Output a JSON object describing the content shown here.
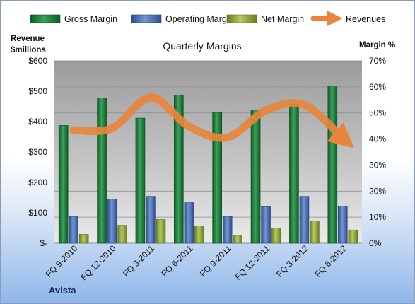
{
  "chart_data": {
    "type": "bar",
    "title": "Quarterly Margins",
    "left_axis_label_line1": "Revenue",
    "left_axis_label_line2": "$millions",
    "right_axis_label": "Margin %",
    "company": "Avista",
    "categories": [
      "FQ 9-2010",
      "FQ 12-2010",
      "FQ 3-2011",
      "FQ 6-2011",
      "FQ 9-2011",
      "FQ 12-2011",
      "FQ 3-2012",
      "FQ 6-2012"
    ],
    "left_ticks": [
      "$-",
      "$100",
      "$200",
      "$300",
      "$400",
      "$500",
      "$600"
    ],
    "right_ticks": [
      "0%",
      "10%",
      "20%",
      "30%",
      "40%",
      "50%",
      "60%",
      "70%"
    ],
    "ylim_left": [
      0,
      600
    ],
    "ylim_right": [
      0,
      70
    ],
    "grid": true,
    "legend_position": "top",
    "series": [
      {
        "name": "Gross Margin",
        "axis": "right",
        "color": "#1e7a3c",
        "values": [
          45.2,
          55.8,
          48.0,
          56.9,
          50.2,
          51.2,
          53.3,
          60.3
        ]
      },
      {
        "name": "Operating Margin",
        "axis": "right",
        "color": "#4a6fb5",
        "values": [
          10.3,
          17.0,
          18.0,
          15.6,
          10.3,
          14.0,
          18.0,
          14.3
        ]
      },
      {
        "name": "Net Margin",
        "axis": "right",
        "color": "#8ea63a",
        "values": [
          3.4,
          6.9,
          9.1,
          6.7,
          3.0,
          5.8,
          8.5,
          5.1
        ]
      },
      {
        "name": "Revenues",
        "axis": "left",
        "color": "#e8843c",
        "type": "line",
        "values": [
          372,
          378,
          480,
          384,
          348,
          437,
          455,
          345
        ]
      }
    ]
  }
}
